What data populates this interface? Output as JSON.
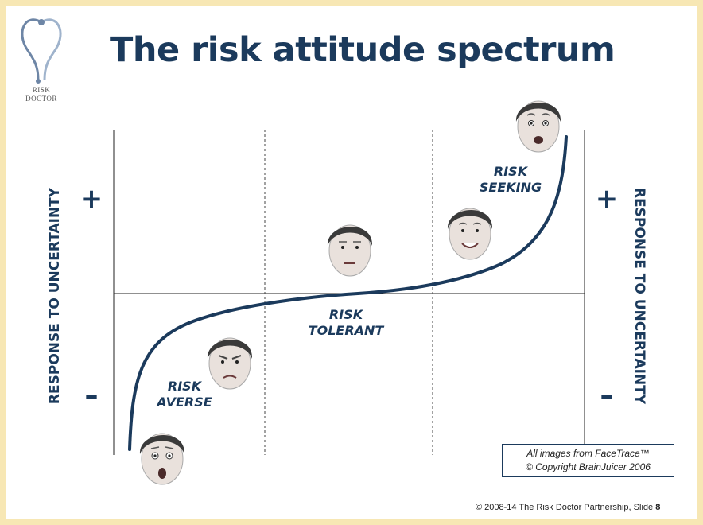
{
  "title": "The risk attitude spectrum",
  "logo": {
    "line1": "RISK",
    "line2": "DOCTOR"
  },
  "axis": {
    "left_label": "RESPONSE TO UNCERTAINTY",
    "right_label": "RESPONSE TO UNCERTAINTY",
    "plus": "+",
    "minus": "–"
  },
  "zones": {
    "averse": {
      "line1": "RISK",
      "line2": "AVERSE"
    },
    "tolerant": {
      "line1": "RISK",
      "line2": "TOLERANT"
    },
    "seeking": {
      "line1": "RISK",
      "line2": "SEEKING"
    }
  },
  "faces": [
    {
      "name": "face-risk-averse-scared",
      "expression": "scared"
    },
    {
      "name": "face-risk-averse-frown",
      "expression": "frown"
    },
    {
      "name": "face-risk-tolerant-neutral",
      "expression": "neutral"
    },
    {
      "name": "face-risk-seeking-smile",
      "expression": "smile"
    },
    {
      "name": "face-risk-seeking-surprised",
      "expression": "surprised"
    }
  ],
  "credit": {
    "line1": "All images from FaceTrace™",
    "line2": "© Copyright BrainJuicer 2006"
  },
  "footer": {
    "text": "© 2008-14   The Risk Doctor Partnership, Slide",
    "slide_number": "8"
  },
  "colors": {
    "navy": "#1b3a5c",
    "frame": "#f7e7b4"
  }
}
